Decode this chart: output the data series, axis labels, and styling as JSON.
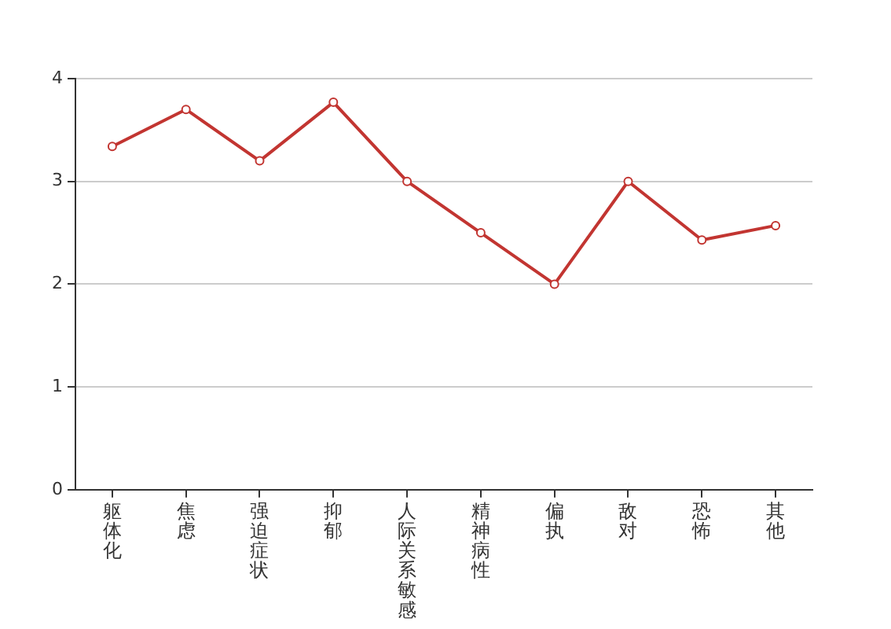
{
  "chart_data": {
    "type": "line",
    "categories": [
      "躯体化",
      "焦虑",
      "强迫症状",
      "抑郁",
      "人际关系敏感",
      "精神病性",
      "偏执",
      "敌对",
      "恐怖",
      "其他"
    ],
    "series": [
      {
        "color": "#c23531",
        "values": [
          3.34,
          3.7,
          3.2,
          3.77,
          3.0,
          2.5,
          2.0,
          3.0,
          2.43,
          2.57
        ]
      }
    ],
    "ylim": [
      0,
      4
    ],
    "yticks": [
      0,
      1,
      2,
      3,
      4
    ],
    "grid": "y",
    "marker": "circle",
    "legend": false
  }
}
